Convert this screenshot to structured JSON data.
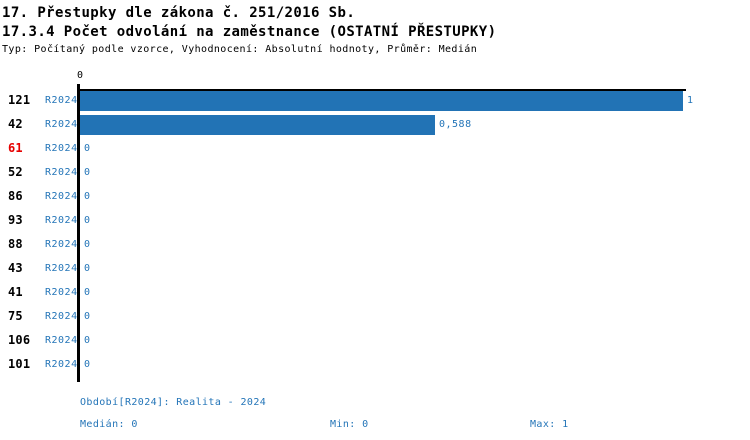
{
  "header": {
    "title": "17. Přestupky dle zákona č. 251/2016 Sb.",
    "subtitle": "17.3.4 Počet odvolání na zaměstnance (OSTATNÍ PŘESTUPKY)",
    "meta": "Typ: Počítaný podle vzorce, Vyhodnocení: Absolutní hodnoty, Průměr: Medián"
  },
  "colors": {
    "bar": "#2273B5",
    "blue_text": "#2475B8",
    "red_text": "#E60000",
    "black_text": "#000000",
    "axis": "#000000"
  },
  "chart_data": {
    "type": "bar",
    "orientation": "horizontal",
    "title": "17.3.4 Počet odvolání na zaměstnance (OSTATNÍ PŘESTUPKY)",
    "xlim": [
      0,
      1
    ],
    "x_tick_labels": [
      "0"
    ],
    "grid": false,
    "legend_position": "none",
    "rows": [
      {
        "category": "121",
        "category_color": "black",
        "series": "R2024",
        "value": 1,
        "value_label": "1"
      },
      {
        "category": "42",
        "category_color": "black",
        "series": "R2024",
        "value": 0.588,
        "value_label": "0,588"
      },
      {
        "category": "61",
        "category_color": "red",
        "series": "R2024",
        "value": 0,
        "value_label": "0"
      },
      {
        "category": "52",
        "category_color": "black",
        "series": "R2024",
        "value": 0,
        "value_label": "0"
      },
      {
        "category": "86",
        "category_color": "black",
        "series": "R2024",
        "value": 0,
        "value_label": "0"
      },
      {
        "category": "93",
        "category_color": "black",
        "series": "R2024",
        "value": 0,
        "value_label": "0"
      },
      {
        "category": "88",
        "category_color": "black",
        "series": "R2024",
        "value": 0,
        "value_label": "0"
      },
      {
        "category": "43",
        "category_color": "black",
        "series": "R2024",
        "value": 0,
        "value_label": "0"
      },
      {
        "category": "41",
        "category_color": "black",
        "series": "R2024",
        "value": 0,
        "value_label": "0"
      },
      {
        "category": "75",
        "category_color": "black",
        "series": "R2024",
        "value": 0,
        "value_label": "0"
      },
      {
        "category": "106",
        "category_color": "black",
        "series": "R2024",
        "value": 0,
        "value_label": "0"
      },
      {
        "category": "101",
        "category_color": "black",
        "series": "R2024",
        "value": 0,
        "value_label": "0"
      }
    ]
  },
  "footer": {
    "period": "Období[R2024]: Realita - 2024",
    "median": "Medián: 0",
    "min": "Min: 0",
    "max": "Max: 1"
  }
}
